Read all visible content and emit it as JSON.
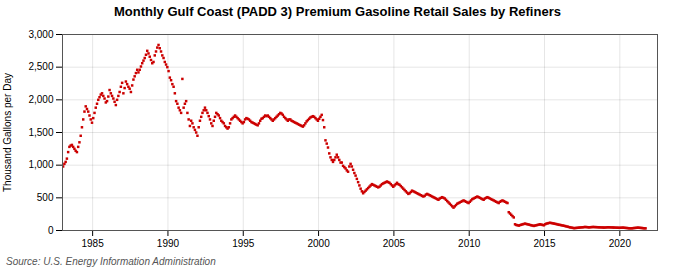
{
  "chart_data": {
    "type": "scatter",
    "title": "Monthly Gulf Coast (PADD 3) Premium Gasoline Retail Sales by Refiners",
    "ylabel": "Thousand Gallons per Day",
    "source": "Source: U.S. Energy Information Administration",
    "color": "#cc0000",
    "marker": "square",
    "grid": true,
    "xlim": [
      1983.0,
      2022.5
    ],
    "xticks": [
      1985,
      1990,
      1995,
      2000,
      2005,
      2010,
      2015,
      2020
    ],
    "ylim": [
      0,
      3000
    ],
    "yticks": [
      0,
      500,
      {
        "value": 1000,
        "label": "1,000"
      },
      {
        "value": 1500,
        "label": "1,500"
      },
      {
        "value": 2000,
        "label": "2,000"
      },
      {
        "value": 2500,
        "label": "2,500"
      },
      {
        "value": 3000,
        "label": "3,000"
      }
    ],
    "x": [
      1983.0417,
      1983.125,
      1983.2083,
      1983.2917,
      1983.375,
      1983.4583,
      1983.5417,
      1983.625,
      1983.7083,
      1983.7917,
      1983.875,
      1983.9583,
      1984.0417,
      1984.125,
      1984.2083,
      1984.2917,
      1984.375,
      1984.4583,
      1984.5417,
      1984.625,
      1984.7083,
      1984.7917,
      1984.875,
      1984.9583,
      1985.0417,
      1985.125,
      1985.2083,
      1985.2917,
      1985.375,
      1985.4583,
      1985.5417,
      1985.625,
      1985.7083,
      1985.7917,
      1985.875,
      1985.9583,
      1986.0417,
      1986.125,
      1986.2083,
      1986.2917,
      1986.375,
      1986.4583,
      1986.5417,
      1986.625,
      1986.7083,
      1986.7917,
      1986.875,
      1986.9583,
      1987.0417,
      1987.125,
      1987.2083,
      1987.2917,
      1987.375,
      1987.4583,
      1987.5417,
      1987.625,
      1987.7083,
      1987.7917,
      1987.875,
      1987.9583,
      1988.0417,
      1988.125,
      1988.2083,
      1988.2917,
      1988.375,
      1988.4583,
      1988.5417,
      1988.625,
      1988.7083,
      1988.7917,
      1988.875,
      1988.9583,
      1989.0417,
      1989.125,
      1989.2083,
      1989.2917,
      1989.375,
      1989.4583,
      1989.5417,
      1989.625,
      1989.7083,
      1989.7917,
      1989.875,
      1989.9583,
      1990.0417,
      1990.125,
      1990.2083,
      1990.2917,
      1990.375,
      1990.4583,
      1990.5417,
      1990.625,
      1990.7083,
      1990.7917,
      1990.875,
      1990.9583,
      1991.0417,
      1991.125,
      1991.2083,
      1991.2917,
      1991.375,
      1991.4583,
      1991.5417,
      1991.625,
      1991.7083,
      1991.7917,
      1991.875,
      1991.9583,
      1992.0417,
      1992.125,
      1992.2083,
      1992.2917,
      1992.375,
      1992.4583,
      1992.5417,
      1992.625,
      1992.7083,
      1992.7917,
      1992.875,
      1992.9583,
      1993.0417,
      1993.125,
      1993.2083,
      1993.2917,
      1993.375,
      1993.4583,
      1993.5417,
      1993.625,
      1993.7083,
      1993.7917,
      1993.875,
      1993.9583,
      1994.0417,
      1994.125,
      1994.2083,
      1994.2917,
      1994.375,
      1994.4583,
      1994.5417,
      1994.625,
      1994.7083,
      1994.7917,
      1994.875,
      1994.9583,
      1995.0417,
      1995.125,
      1995.2083,
      1995.2917,
      1995.375,
      1995.4583,
      1995.5417,
      1995.625,
      1995.7083,
      1995.7917,
      1995.875,
      1995.9583,
      1996.0417,
      1996.125,
      1996.2083,
      1996.2917,
      1996.375,
      1996.4583,
      1996.5417,
      1996.625,
      1996.7083,
      1996.7917,
      1996.875,
      1996.9583,
      1997.0417,
      1997.125,
      1997.2083,
      1997.2917,
      1997.375,
      1997.4583,
      1997.5417,
      1997.625,
      1997.7083,
      1997.7917,
      1997.875,
      1997.9583,
      1998.0417,
      1998.125,
      1998.2083,
      1998.2917,
      1998.375,
      1998.4583,
      1998.5417,
      1998.625,
      1998.7083,
      1998.7917,
      1998.875,
      1998.9583,
      1999.0417,
      1999.125,
      1999.2083,
      1999.2917,
      1999.375,
      1999.4583,
      1999.5417,
      1999.625,
      1999.7083,
      1999.7917,
      1999.875,
      1999.9583,
      2000.0417,
      2000.125,
      2000.2083,
      2000.2917,
      2000.375,
      2000.4583,
      2000.5417,
      2000.625,
      2000.7083,
      2000.7917,
      2000.875,
      2000.9583,
      2001.0417,
      2001.125,
      2001.2083,
      2001.2917,
      2001.375,
      2001.4583,
      2001.5417,
      2001.625,
      2001.7083,
      2001.7917,
      2001.875,
      2001.9583,
      2002.0417,
      2002.125,
      2002.2083,
      2002.2917,
      2002.375,
      2002.4583,
      2002.5417,
      2002.625,
      2002.7083,
      2002.7917,
      2002.875,
      2002.9583,
      2003.0417,
      2003.125,
      2003.2083,
      2003.2917,
      2003.375,
      2003.4583,
      2003.5417,
      2003.625,
      2003.7083,
      2003.7917,
      2003.875,
      2003.9583,
      2004.0417,
      2004.125,
      2004.2083,
      2004.2917,
      2004.375,
      2004.4583,
      2004.5417,
      2004.625,
      2004.7083,
      2004.7917,
      2004.875,
      2004.9583,
      2005.0417,
      2005.125,
      2005.2083,
      2005.2917,
      2005.375,
      2005.4583,
      2005.5417,
      2005.625,
      2005.7083,
      2005.7917,
      2005.875,
      2005.9583,
      2006.0417,
      2006.125,
      2006.2083,
      2006.2917,
      2006.375,
      2006.4583,
      2006.5417,
      2006.625,
      2006.7083,
      2006.7917,
      2006.875,
      2006.9583,
      2007.0417,
      2007.125,
      2007.2083,
      2007.2917,
      2007.375,
      2007.4583,
      2007.5417,
      2007.625,
      2007.7083,
      2007.7917,
      2007.875,
      2007.9583,
      2008.0417,
      2008.125,
      2008.2083,
      2008.2917,
      2008.375,
      2008.4583,
      2008.5417,
      2008.625,
      2008.7083,
      2008.7917,
      2008.875,
      2008.9583,
      2009.0417,
      2009.125,
      2009.2083,
      2009.2917,
      2009.375,
      2009.4583,
      2009.5417,
      2009.625,
      2009.7083,
      2009.7917,
      2009.875,
      2009.9583,
      2010.0417,
      2010.125,
      2010.2083,
      2010.2917,
      2010.375,
      2010.4583,
      2010.5417,
      2010.625,
      2010.7083,
      2010.7917,
      2010.875,
      2010.9583,
      2011.0417,
      2011.125,
      2011.2083,
      2011.2917,
      2011.375,
      2011.4583,
      2011.5417,
      2011.625,
      2011.7083,
      2011.7917,
      2011.875,
      2011.9583,
      2012.0417,
      2012.125,
      2012.2083,
      2012.2917,
      2012.375,
      2012.4583,
      2012.5417,
      2012.625,
      2012.7083,
      2012.7917,
      2012.875,
      2012.9583,
      2013.0417,
      2013.125,
      2013.2083,
      2013.2917,
      2013.375,
      2013.4583,
      2013.5417,
      2013.625,
      2013.7083,
      2013.7917,
      2013.875,
      2013.9583,
      2014.0417,
      2014.125,
      2014.2083,
      2014.2917,
      2014.375,
      2014.4583,
      2014.5417,
      2014.625,
      2014.7083,
      2014.7917,
      2014.875,
      2014.9583,
      2015.0417,
      2015.125,
      2015.2083,
      2015.2917,
      2015.375,
      2015.4583,
      2015.5417,
      2015.625,
      2015.7083,
      2015.7917,
      2015.875,
      2015.9583,
      2016.0417,
      2016.125,
      2016.2083,
      2016.2917,
      2016.375,
      2016.4583,
      2016.5417,
      2016.625,
      2016.7083,
      2016.7917,
      2016.875,
      2016.9583,
      2017.0417,
      2017.125,
      2017.2083,
      2017.2917,
      2017.375,
      2017.4583,
      2017.5417,
      2017.625,
      2017.7083,
      2017.7917,
      2017.875,
      2017.9583,
      2018.0417,
      2018.125,
      2018.2083,
      2018.2917,
      2018.375,
      2018.4583,
      2018.5417,
      2018.625,
      2018.7083,
      2018.7917,
      2018.875,
      2018.9583,
      2019.0417,
      2019.125,
      2019.2083,
      2019.2917,
      2019.375,
      2019.4583,
      2019.5417,
      2019.625,
      2019.7083,
      2019.7917,
      2019.875,
      2019.9583,
      2020.0417,
      2020.125,
      2020.2083,
      2020.2917,
      2020.375,
      2020.4583,
      2020.5417,
      2020.625,
      2020.7083,
      2020.7917,
      2020.875,
      2020.9583,
      2021.0417,
      2021.125,
      2021.2083,
      2021.2917,
      2021.375,
      2021.4583,
      2021.5417,
      2021.625,
      2021.7083
    ],
    "values": [
      980,
      1020,
      1050,
      1100,
      1200,
      1280,
      1300,
      1310,
      1280,
      1250,
      1220,
      1200,
      1280,
      1350,
      1450,
      1580,
      1700,
      1820,
      1900,
      1860,
      1820,
      1760,
      1700,
      1650,
      1720,
      1800,
      1880,
      1940,
      2000,
      2040,
      2080,
      2100,
      2060,
      2020,
      1960,
      1980,
      2050,
      2150,
      2100,
      2060,
      2020,
      1970,
      1920,
      2000,
      2060,
      2120,
      2200,
      2260,
      2100,
      2180,
      2280,
      2240,
      2200,
      2170,
      2120,
      2220,
      2310,
      2360,
      2410,
      2460,
      2420,
      2460,
      2510,
      2560,
      2600,
      2640,
      2690,
      2750,
      2710,
      2660,
      2610,
      2560,
      2580,
      2680,
      2740,
      2800,
      2840,
      2790,
      2740,
      2680,
      2640,
      2580,
      2540,
      2500,
      2440,
      2340,
      2300,
      2240,
      2200,
      2100,
      1980,
      1940,
      1880,
      1840,
      1800,
      2320,
      1880,
      1940,
      1980,
      1800,
      1700,
      1600,
      1680,
      1640,
      1580,
      1540,
      1500,
      1450,
      1580,
      1680,
      1740,
      1800,
      1840,
      1880,
      1840,
      1800,
      1750,
      1700,
      1640,
      1600,
      1680,
      1740,
      1800,
      1780,
      1760,
      1720,
      1680,
      1660,
      1640,
      1600,
      1580,
      1560,
      1580,
      1640,
      1700,
      1720,
      1740,
      1760,
      1740,
      1720,
      1700,
      1680,
      1660,
      1640,
      1660,
      1700,
      1720,
      1710,
      1700,
      1680,
      1660,
      1650,
      1640,
      1630,
      1620,
      1610,
      1640,
      1680,
      1710,
      1720,
      1740,
      1760,
      1750,
      1760,
      1740,
      1720,
      1700,
      1680,
      1700,
      1720,
      1740,
      1760,
      1780,
      1800,
      1790,
      1770,
      1740,
      1720,
      1700,
      1680,
      1700,
      1700,
      1680,
      1670,
      1660,
      1650,
      1640,
      1630,
      1620,
      1610,
      1600,
      1590,
      1610,
      1640,
      1670,
      1690,
      1710,
      1730,
      1740,
      1750,
      1740,
      1720,
      1700,
      1680,
      1710,
      1740,
      1770,
      1690,
      1580,
      1380,
      1330,
      1270,
      1180,
      1120,
      1080,
      1050,
      1080,
      1120,
      1160,
      1120,
      1080,
      1040,
      1040,
      990,
      970,
      950,
      920,
      900,
      980,
      1020,
      980,
      930,
      880,
      840,
      790,
      740,
      690,
      640,
      600,
      570,
      590,
      610,
      630,
      650,
      670,
      690,
      710,
      700,
      690,
      680,
      670,
      660,
      670,
      690,
      710,
      720,
      730,
      740,
      750,
      740,
      730,
      710,
      690,
      670,
      690,
      710,
      730,
      710,
      700,
      680,
      660,
      640,
      620,
      600,
      580,
      560,
      570,
      590,
      610,
      600,
      590,
      580,
      570,
      560,
      550,
      540,
      530,
      520,
      530,
      550,
      560,
      550,
      540,
      530,
      520,
      510,
      500,
      490,
      480,
      470,
      490,
      500,
      510,
      500,
      490,
      470,
      450,
      430,
      410,
      390,
      370,
      350,
      370,
      390,
      410,
      420,
      430,
      440,
      450,
      460,
      450,
      440,
      430,
      420,
      440,
      460,
      480,
      490,
      500,
      510,
      520,
      510,
      500,
      490,
      480,
      470,
      490,
      500,
      510,
      500,
      490,
      480,
      470,
      460,
      450,
      440,
      430,
      420,
      440,
      450,
      460,
      450,
      440,
      430,
      420,
      280,
      260,
      240,
      220,
      200,
      95,
      85,
      80,
      75,
      82,
      88,
      95,
      100,
      105,
      100,
      95,
      90,
      85,
      80,
      75,
      70,
      76,
      80,
      86,
      90,
      95,
      90,
      85,
      80,
      95,
      105,
      110,
      115,
      118,
      114,
      110,
      106,
      102,
      98,
      92,
      87,
      86,
      80,
      76,
      72,
      68,
      62,
      58,
      52,
      48,
      44,
      40,
      36,
      38,
      40,
      42,
      44,
      46,
      48,
      50,
      52,
      54,
      52,
      50,
      48,
      50,
      52,
      54,
      53,
      52,
      51,
      50,
      49,
      48,
      47,
      46,
      45,
      46,
      48,
      50,
      49,
      48,
      47,
      46,
      45,
      44,
      43,
      42,
      41,
      42,
      43,
      44,
      42,
      40,
      38,
      36,
      34,
      33,
      34,
      36,
      38,
      40,
      42,
      44,
      42,
      40,
      38,
      36,
      34,
      33
    ]
  }
}
